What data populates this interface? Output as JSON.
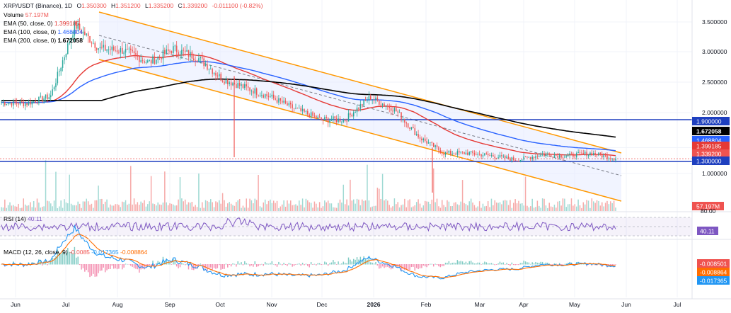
{
  "colors": {
    "up": "#26a69a",
    "down": "#ef5350",
    "ema50": "#e53935",
    "ema100": "#2962ff",
    "ema200": "#000000",
    "channel": "#ff9800",
    "hline": "#1e3fbf",
    "rsi": "#7e57c2",
    "macd": "#2196f3",
    "signal": "#ff6d00"
  },
  "header": {
    "symbol_line": "XRP/USDT (Binance), 1D",
    "o_label": "O",
    "o_value": "1.350300",
    "h_label": "H",
    "h_value": "1.351200",
    "l_label": "L",
    "l_value": "1.335200",
    "c_label": "C",
    "c_value": "1.339200",
    "change": "-0.011100 (-0.82%)",
    "volume_label": "Volume",
    "volume_value": "57.197M",
    "ema50_label": "EMA (50, close, 0)",
    "ema50_value": "1.399185",
    "ema100_label": "EMA (100, close, 0)",
    "ema100_value": "1.468804",
    "ema200_label": "EMA (200, close, 0)",
    "ema200_value": "1.672058"
  },
  "rsi_panel": {
    "label": "RSI (14)",
    "value": "40.11",
    "top_level": "80.00",
    "badge": "40.11"
  },
  "macd_panel": {
    "label": "MACD (12, 26, close, 9)",
    "v1": "-0.0085",
    "v2": "-0.017365",
    "v3": "-0.008864",
    "badges": [
      "-0.008501",
      "-0.008864",
      "-0.017365"
    ]
  },
  "price_badges": {
    "ema200": "1.672058",
    "ema100": "1.468804",
    "ema50": "1.399185",
    "close": "1.339200",
    "level_high": "1.900000",
    "level_low": "1.300000",
    "volume": "57.197M"
  },
  "chart_data": {
    "type": "candlestick",
    "title": "XRP/USDT (Binance), 1D",
    "x_tick_labels": [
      "Jun",
      "Jul",
      "Aug",
      "Sep",
      "Oct",
      "Nov",
      "Dec",
      "2026",
      "Feb",
      "Mar",
      "Apr",
      "May",
      "Jun",
      "Jul"
    ],
    "y_tick_labels": [
      "3.500000",
      "3.000000",
      "2.500000",
      "2.000000",
      "1.000000"
    ],
    "y_ticks": [
      3.5,
      3.0,
      2.5,
      2.0,
      1.0
    ],
    "ylim": [
      0.8,
      3.75
    ],
    "scale": "linear",
    "horizontal_levels": [
      1.9,
      1.3
    ],
    "grid": true,
    "close_path": [
      [
        "Jun",
        2.17
      ],
      [
        "mid-Jun",
        2.15
      ],
      [
        "Jul",
        2.27
      ],
      [
        "mid-Jul",
        3.45
      ],
      [
        "Aug",
        3.05
      ],
      [
        "mid-Aug",
        3.02
      ],
      [
        "Sep",
        2.82
      ],
      [
        "mid-Sep",
        3.05
      ],
      [
        "Oct",
        2.9
      ],
      [
        "mid-Oct",
        2.55
      ],
      [
        "Nov",
        2.4
      ],
      [
        "mid-Nov",
        2.25
      ],
      [
        "Dec",
        2.05
      ],
      [
        "mid-Dec",
        1.9
      ],
      [
        "2026",
        1.9
      ],
      [
        "early-Jan",
        2.25
      ],
      [
        "mid-Jan",
        2.05
      ],
      [
        "Feb",
        1.65
      ],
      [
        "mid-Feb",
        1.42
      ],
      [
        "Mar",
        1.42
      ],
      [
        "mid-Mar",
        1.38
      ],
      [
        "Apr",
        1.32
      ],
      [
        "mid-Apr",
        1.4
      ],
      [
        "May",
        1.38
      ],
      [
        "mid-May",
        1.42
      ],
      [
        "end-May",
        1.3392
      ]
    ],
    "series": [
      {
        "name": "EMA (50, close, 0)",
        "last": 1.399185
      },
      {
        "name": "EMA (100, close, 0)",
        "last": 1.468804
      },
      {
        "name": "EMA (200, close, 0)",
        "last": 1.672058
      },
      {
        "name": "Volume",
        "last": "57.197M"
      },
      {
        "name": "RSI (14)",
        "last": 40.11
      },
      {
        "name": "MACD (12, 26, close, 9)",
        "values": [
          -0.008501,
          -0.008864,
          -0.017365
        ]
      }
    ]
  }
}
